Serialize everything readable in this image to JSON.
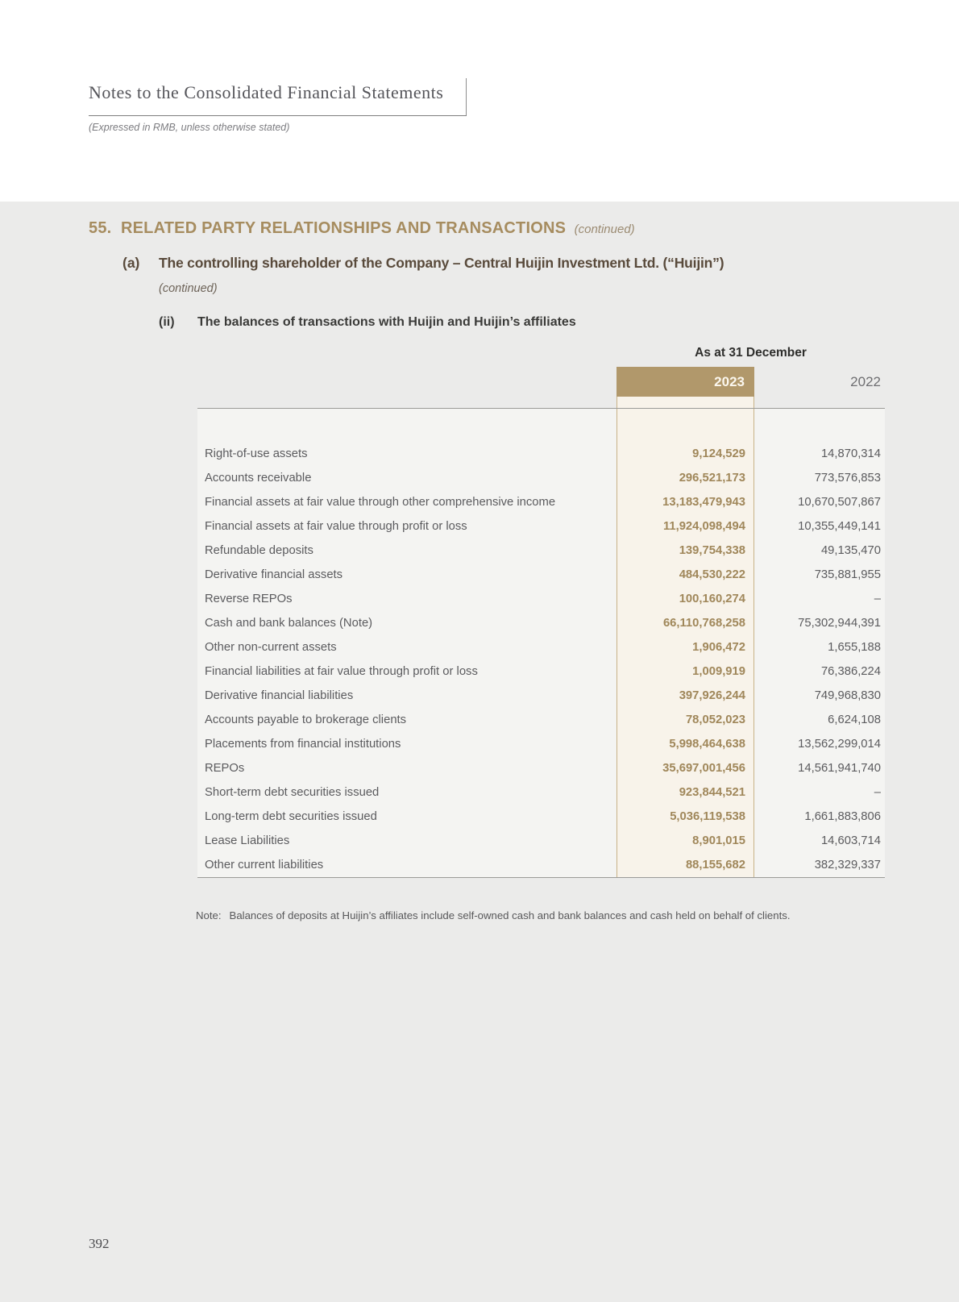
{
  "header": {
    "title": "Notes to the Consolidated Financial Statements",
    "subtitle": "(Expressed in RMB, unless otherwise stated)"
  },
  "section": {
    "number": "55.",
    "title": "RELATED PARTY RELATIONSHIPS AND TRANSACTIONS",
    "continued": "(continued)"
  },
  "subsection_a": {
    "label": "(a)",
    "title": "The controlling shareholder of the Company – Central Huijin Investment Ltd. (“Huijin”)",
    "continued": "(continued)"
  },
  "subsection_ii": {
    "label": "(ii)",
    "title": "The balances of transactions with Huijin and Huijin’s affiliates"
  },
  "table": {
    "date_header": "As at 31 December",
    "col_2023": "2023",
    "col_2022": "2022",
    "rows": [
      {
        "label": "Right-of-use assets",
        "y2023": "9,124,529",
        "y2022": "14,870,314"
      },
      {
        "label": "Accounts receivable",
        "y2023": "296,521,173",
        "y2022": "773,576,853"
      },
      {
        "label": "Financial assets at fair value through other comprehensive income",
        "y2023": "13,183,479,943",
        "y2022": "10,670,507,867"
      },
      {
        "label": "Financial assets at fair value through profit or loss",
        "y2023": "11,924,098,494",
        "y2022": "10,355,449,141"
      },
      {
        "label": "Refundable deposits",
        "y2023": "139,754,338",
        "y2022": "49,135,470"
      },
      {
        "label": "Derivative financial assets",
        "y2023": "484,530,222",
        "y2022": "735,881,955"
      },
      {
        "label": "Reverse REPOs",
        "y2023": "100,160,274",
        "y2022": "–"
      },
      {
        "label": "Cash and bank balances (Note)",
        "y2023": "66,110,768,258",
        "y2022": "75,302,944,391"
      },
      {
        "label": "Other non-current assets",
        "y2023": "1,906,472",
        "y2022": "1,655,188"
      },
      {
        "label": "Financial liabilities at fair value through profit or loss",
        "y2023": "1,009,919",
        "y2022": "76,386,224"
      },
      {
        "label": "Derivative financial liabilities",
        "y2023": "397,926,244",
        "y2022": "749,968,830"
      },
      {
        "label": "Accounts payable to brokerage clients",
        "y2023": "78,052,023",
        "y2022": "6,624,108"
      },
      {
        "label": "Placements from financial institutions",
        "y2023": "5,998,464,638",
        "y2022": "13,562,299,014"
      },
      {
        "label": "REPOs",
        "y2023": "35,697,001,456",
        "y2022": "14,561,941,740"
      },
      {
        "label": "Short-term debt securities issued",
        "y2023": "923,844,521",
        "y2022": "–"
      },
      {
        "label": "Long-term debt securities issued",
        "y2023": "5,036,119,538",
        "y2022": "1,661,883,806"
      },
      {
        "label": "Lease Liabilities",
        "y2023": "8,901,015",
        "y2022": "14,603,714"
      },
      {
        "label": "Other current liabilities",
        "y2023": "88,155,682",
        "y2022": "382,329,337"
      }
    ]
  },
  "note": {
    "label": "Note:",
    "text": "Balances of deposits at Huijin’s affiliates include self-owned cash and bank balances and cash held on behalf of clients."
  },
  "footer": {
    "page_number": "392"
  },
  "colors": {
    "accent_tan": "#b1986b",
    "accent_text": "#a0875a",
    "heading_gold": "#a68c5f",
    "heading_brown": "#594a3b",
    "page_grey": "#ebebea",
    "highlight_cream": "#f8f3ea",
    "highlight_border": "#c8b288"
  }
}
